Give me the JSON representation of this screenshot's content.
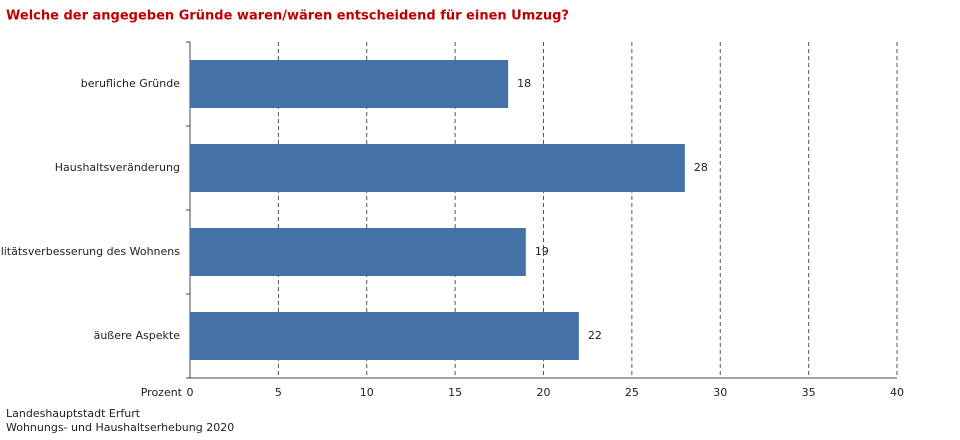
{
  "chart_data": {
    "type": "bar",
    "orientation": "horizontal",
    "title": "Welche der angegeben Gründe waren/wären entscheidend für einen Umzug?",
    "x_label": "Prozent",
    "categories": [
      "berufliche Gründe",
      "Haushaltsveränderung",
      "Qualitätsverbesserung des Wohnens",
      "äußere Aspekte"
    ],
    "values": [
      18,
      28,
      19,
      22
    ],
    "color": "#4472a8",
    "xlim": [
      0,
      40
    ],
    "xticks": [
      0,
      5,
      10,
      15,
      20,
      25,
      30,
      35,
      40
    ],
    "grid": true,
    "source": [
      "Landeshauptstadt Erfurt",
      "Wohnungs- und Haushaltserhebung 2020"
    ]
  }
}
